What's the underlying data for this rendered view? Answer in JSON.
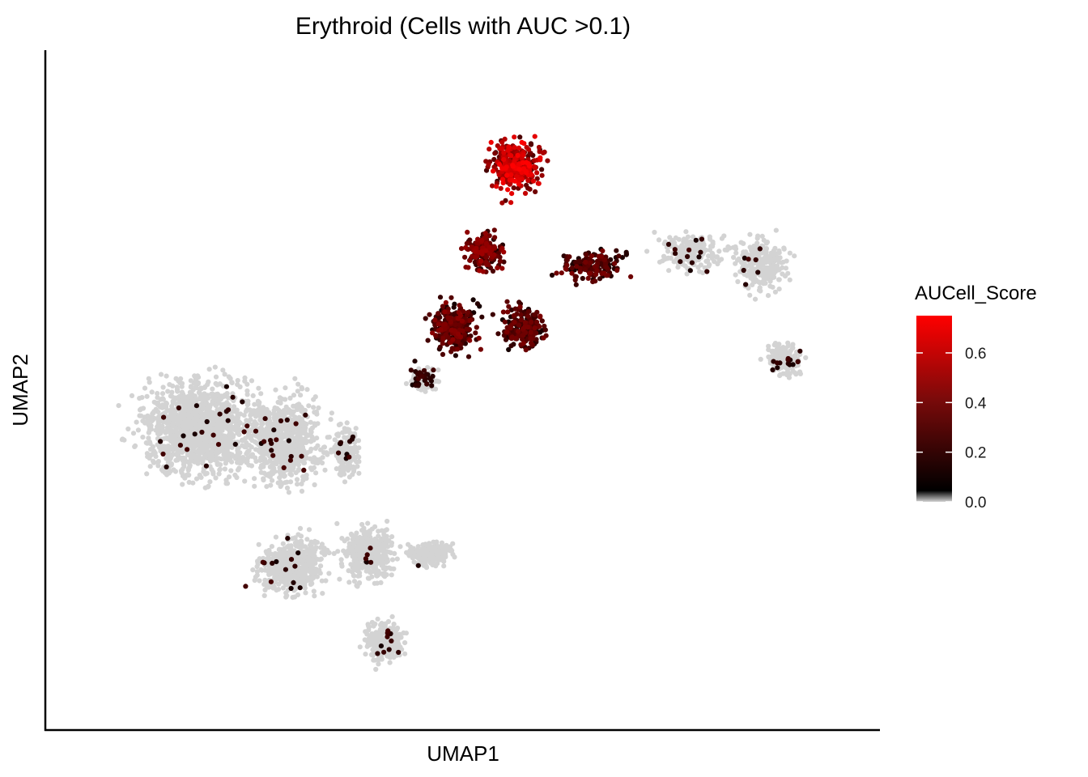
{
  "chart_data": {
    "type": "scatter",
    "title": "Erythroid (Cells with AUC >0.1)",
    "xlabel": "UMAP1",
    "ylabel": "UMAP2",
    "xlim": [
      0,
      100
    ],
    "ylim": [
      0,
      100
    ],
    "axis_ticks_shown": false,
    "grid": false,
    "legend": {
      "title": "AUCell_Score",
      "placement": "right",
      "ticks": [
        {
          "value": 0.0,
          "label": "0.0"
        },
        {
          "value": 0.2,
          "label": "0.2"
        },
        {
          "value": 0.4,
          "label": "0.4"
        },
        {
          "value": 0.6,
          "label": "0.6"
        }
      ],
      "range": [
        0.0,
        0.75
      ],
      "color_low": "#d3d3d3",
      "color_mid": "#000000",
      "color_high": "#ff0000"
    },
    "regions": [
      {
        "x": 57,
        "y": 86,
        "rx": 5.5,
        "ry": 7,
        "count": 320,
        "score_min": 0.25,
        "score_max": 0.75
      },
      {
        "x": 53,
        "y": 72,
        "rx": 4,
        "ry": 5,
        "count": 180,
        "score_min": 0.15,
        "score_max": 0.5
      },
      {
        "x": 49,
        "y": 60,
        "rx": 5,
        "ry": 6,
        "count": 260,
        "score_min": 0.1,
        "score_max": 0.45
      },
      {
        "x": 58,
        "y": 60,
        "rx": 5,
        "ry": 5,
        "count": 200,
        "score_min": 0.1,
        "score_max": 0.4
      },
      {
        "x": 67,
        "y": 70,
        "rx": 7,
        "ry": 4,
        "count": 150,
        "score_min": 0.1,
        "score_max": 0.4
      },
      {
        "x": 80,
        "y": 72,
        "rx": 7,
        "ry": 5,
        "count": 200,
        "score_min": 0.0,
        "score_max": 0.05,
        "fraction_scored": 0.06
      },
      {
        "x": 89,
        "y": 70,
        "rx": 5,
        "ry": 7,
        "count": 260,
        "score_min": 0.0,
        "score_max": 0.05,
        "fraction_scored": 0.03
      },
      {
        "x": 92,
        "y": 55,
        "rx": 4,
        "ry": 4,
        "count": 180,
        "score_min": 0.0,
        "score_max": 0.2,
        "fraction_scored": 0.06
      },
      {
        "x": 45,
        "y": 52,
        "rx": 3,
        "ry": 3,
        "count": 90,
        "score_min": 0.0,
        "score_max": 0.25,
        "fraction_scored": 0.35
      },
      {
        "x": 16,
        "y": 44,
        "rx": 12,
        "ry": 12,
        "count": 1400,
        "score_min": 0.0,
        "score_max": 0.05,
        "fraction_scored": 0.015
      },
      {
        "x": 27,
        "y": 42,
        "rx": 8,
        "ry": 11,
        "count": 700,
        "score_min": 0.0,
        "score_max": 0.05,
        "fraction_scored": 0.02
      },
      {
        "x": 28,
        "y": 22,
        "rx": 7,
        "ry": 7,
        "count": 500,
        "score_min": 0.0,
        "score_max": 0.05,
        "fraction_scored": 0.02
      },
      {
        "x": 38,
        "y": 24,
        "rx": 5,
        "ry": 7,
        "count": 420,
        "score_min": 0.0,
        "score_max": 0.05,
        "fraction_scored": 0.02
      },
      {
        "x": 40,
        "y": 10,
        "rx": 4,
        "ry": 5,
        "count": 260,
        "score_min": 0.0,
        "score_max": 0.05,
        "fraction_scored": 0.02
      },
      {
        "x": 46,
        "y": 24,
        "rx": 5,
        "ry": 3,
        "count": 220,
        "score_min": 0.0,
        "score_max": 0.05,
        "fraction_scored": 0.02
      },
      {
        "x": 35,
        "y": 40,
        "rx": 3,
        "ry": 7,
        "count": 180,
        "score_min": 0.0,
        "score_max": 0.15,
        "fraction_scored": 0.06
      }
    ]
  }
}
